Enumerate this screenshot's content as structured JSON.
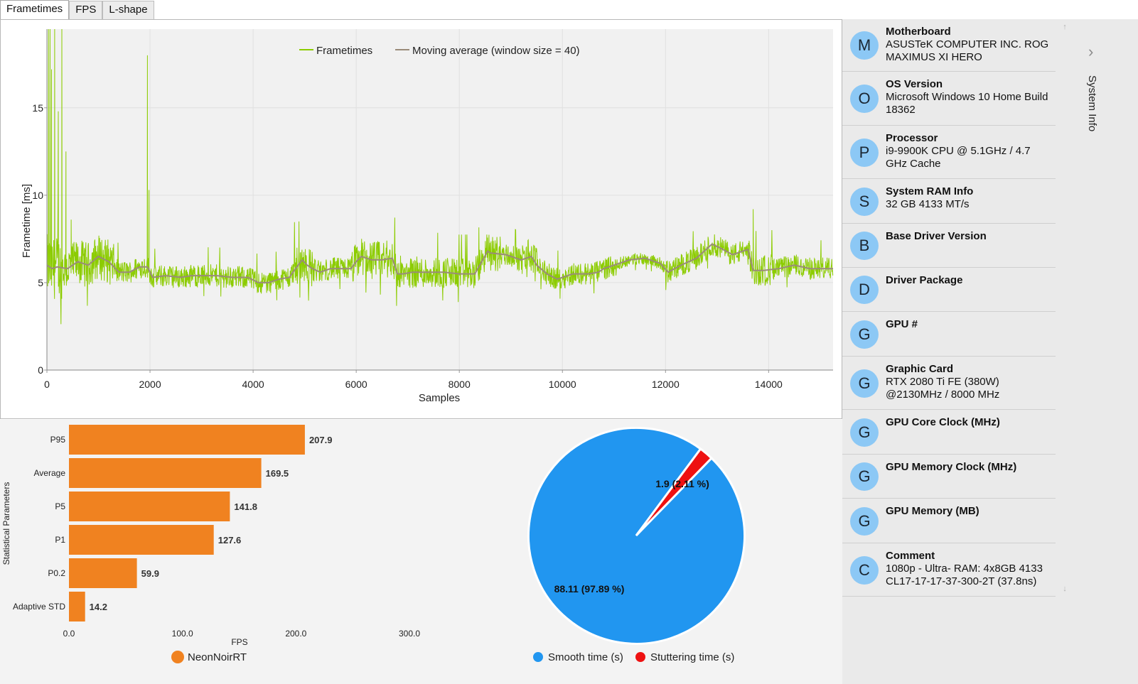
{
  "tabs": [
    {
      "label": "Frametimes",
      "active": true
    },
    {
      "label": "FPS",
      "active": false
    },
    {
      "label": "L-shape",
      "active": false
    }
  ],
  "frametime_chart": {
    "chart_data": {
      "type": "line",
      "xlabel": "Samples",
      "ylabel": "Frametime [ms]",
      "xlim": [
        0,
        15250
      ],
      "ylim": [
        0,
        19.5
      ],
      "x_ticks": [
        0,
        2000,
        4000,
        6000,
        8000,
        10000,
        12000,
        14000
      ],
      "y_ticks": [
        0,
        5,
        10,
        15
      ],
      "grid": true,
      "legend_position": "top-center",
      "series": [
        {
          "name": "Frametimes",
          "color": "#8ccc00"
        },
        {
          "name": "Moving average (window size = 40)",
          "color": "#9a8b79",
          "x": [
            0,
            100,
            200,
            400,
            600,
            800,
            1000,
            1200,
            1400,
            1600,
            1800,
            1950,
            2050,
            2300,
            2600,
            2800,
            3000,
            3300,
            3600,
            3900,
            4100,
            4300,
            4500,
            4700,
            4850,
            4950,
            5050,
            5150,
            5300,
            5500,
            5700,
            5900,
            6000,
            6100,
            6300,
            6500,
            6700,
            6800,
            6900,
            7100,
            7400,
            7700,
            8000,
            8300,
            8550,
            8600,
            8900,
            9200,
            9400,
            9500,
            9700,
            9900,
            10200,
            10500,
            10700,
            10800,
            11000,
            11300,
            11600,
            11900,
            12050,
            12300,
            12600,
            12900,
            13050,
            13300,
            13600,
            13700,
            13900,
            14200,
            14500,
            14800,
            15250
          ],
          "y": [
            6.0,
            5.8,
            5.9,
            5.8,
            6.2,
            6.0,
            6.5,
            6.2,
            5.6,
            5.6,
            5.9,
            5.9,
            5.3,
            5.4,
            5.3,
            5.4,
            5.4,
            5.4,
            5.3,
            5.3,
            5.0,
            5.0,
            5.2,
            5.3,
            5.9,
            6.3,
            6.0,
            5.8,
            5.6,
            5.8,
            5.8,
            5.8,
            6.2,
            6.5,
            6.3,
            6.3,
            6.4,
            5.5,
            5.5,
            5.6,
            5.6,
            5.6,
            5.5,
            5.5,
            6.8,
            6.7,
            6.6,
            6.3,
            6.5,
            6.0,
            5.5,
            5.2,
            5.5,
            5.5,
            5.6,
            5.8,
            6.0,
            6.3,
            6.4,
            6.1,
            5.6,
            6.0,
            6.4,
            7.2,
            7.0,
            6.6,
            6.9,
            5.7,
            5.7,
            5.8,
            6.0,
            5.8,
            5.8
          ]
        }
      ]
    }
  },
  "stats_chart": {
    "chart_data": {
      "type": "bar",
      "orientation": "horizontal",
      "categories": [
        "P95",
        "Average",
        "P5",
        "P1",
        "P0.2",
        "Adaptive STD"
      ],
      "values": [
        207.9,
        169.5,
        141.8,
        127.6,
        59.9,
        14.2
      ],
      "value_labels": [
        "207.9",
        "169.5",
        "141.8",
        "127.6",
        "59.9",
        "14.2"
      ],
      "xlabel": "FPS",
      "ylabel": "Statistical Parameters",
      "xlim": [
        0,
        300
      ],
      "x_ticks": [
        "0.0",
        "100.0",
        "200.0",
        "300.0"
      ],
      "color": "#f08220",
      "series": [
        {
          "name": "NeonNoirRT",
          "color": "#f08220"
        }
      ],
      "legend_position": "bottom-center"
    }
  },
  "stutter_chart": {
    "chart_data": {
      "type": "pie",
      "slices": [
        {
          "name": "Smooth time (s)",
          "value": 88.11,
          "label": "88.11 (97.89 %)",
          "color": "#2196f0"
        },
        {
          "name": "Stuttering time (s)",
          "value": 1.9,
          "label": "1.9 (2.11 %)",
          "color": "#ee1111"
        }
      ],
      "legend_position": "bottom-center"
    }
  },
  "system_info": {
    "panel_title": "System Info",
    "items": [
      {
        "avatar": "M",
        "title": "Motherboard",
        "value": "ASUSTeK COMPUTER INC. ROG MAXIMUS XI HERO"
      },
      {
        "avatar": "O",
        "title": "OS Version",
        "value": "Microsoft Windows 10 Home Build 18362"
      },
      {
        "avatar": "P",
        "title": "Processor",
        "value": "i9-9900K CPU @ 5.1GHz / 4.7 GHz Cache"
      },
      {
        "avatar": "S",
        "title": "System RAM Info",
        "value": "32 GB 4133 MT/s"
      },
      {
        "avatar": "B",
        "title": "Base Driver Version",
        "value": ""
      },
      {
        "avatar": "D",
        "title": "Driver Package",
        "value": ""
      },
      {
        "avatar": "G",
        "title": "GPU #",
        "value": ""
      },
      {
        "avatar": "G",
        "title": "Graphic Card",
        "value": "RTX 2080 Ti FE (380W) @2130MHz / 8000 MHz"
      },
      {
        "avatar": "G",
        "title": "GPU Core Clock (MHz)",
        "value": ""
      },
      {
        "avatar": "G",
        "title": "GPU Memory Clock (MHz)",
        "value": ""
      },
      {
        "avatar": "G",
        "title": "GPU Memory (MB)",
        "value": ""
      },
      {
        "avatar": "C",
        "title": "Comment",
        "value": "1080p - Ultra- RAM: 4x8GB 4133 CL17-17-17-37-300-2T (37.8ns)"
      }
    ],
    "icons": {
      "scroll_up": "arrow-up-icon",
      "scroll_down": "arrow-down-icon",
      "collapse": "chevron-right-icon"
    }
  }
}
